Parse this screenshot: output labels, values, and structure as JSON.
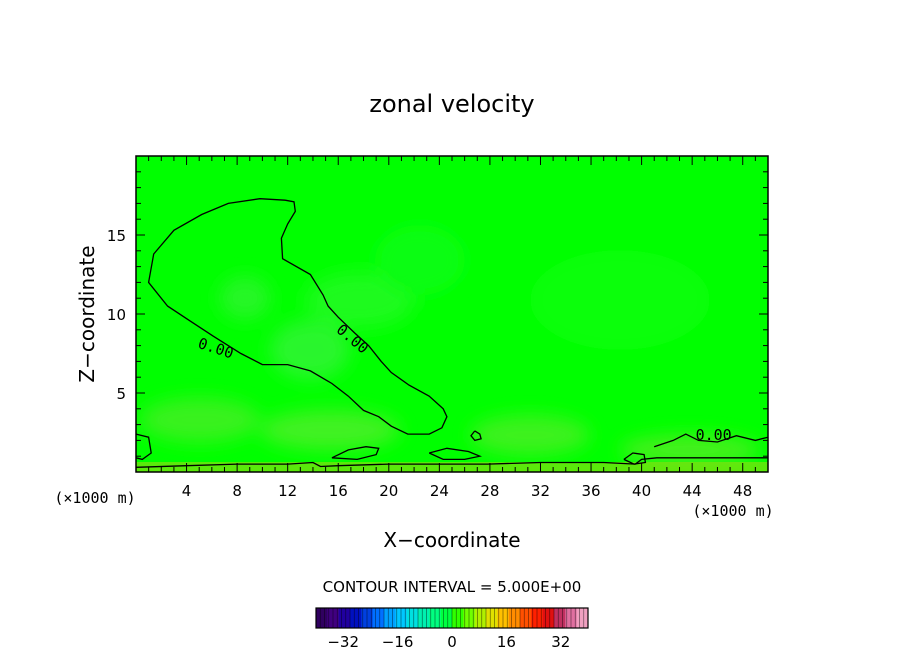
{
  "chart_data": {
    "type": "heatmap",
    "title": "zonal velocity",
    "xlabel": "X−coordinate",
    "ylabel": "Z−coordinate",
    "x_unit_label": "(×1000 m)",
    "z_unit_label": "(×1000 m)",
    "xlim": [
      0,
      50
    ],
    "ylim": [
      0,
      20
    ],
    "x_ticks": [
      4,
      8,
      12,
      16,
      20,
      24,
      28,
      32,
      36,
      40,
      44,
      48
    ],
    "x_tick_labels": [
      "4",
      "8",
      "12",
      "16",
      "20",
      "24",
      "28",
      "32",
      "36",
      "40",
      "44",
      "48"
    ],
    "y_ticks": [
      5,
      10,
      15
    ],
    "y_tick_labels": [
      "5",
      "10",
      "15"
    ],
    "field_color_background": "#00ff00",
    "contour_interval_text": "CONTOUR INTERVAL = 5.000E+00",
    "contour_labels": [
      {
        "text": "0.00",
        "x": 6.3,
        "z": 7.8,
        "angle": 18
      },
      {
        "text": "0.00",
        "x": 17.1,
        "z": 8.4,
        "angle": 40
      },
      {
        "text": "0.00",
        "x": 45.7,
        "z": 2.3,
        "angle": 0
      }
    ],
    "contours": [
      {
        "level": 0,
        "points": [
          [
            11.8,
            17.2
          ],
          [
            12.5,
            17.1
          ],
          [
            12.6,
            16.5
          ],
          [
            12.0,
            15.7
          ],
          [
            11.5,
            14.8
          ],
          [
            11.6,
            13.5
          ],
          [
            13.8,
            12.5
          ],
          [
            14.8,
            11.2
          ],
          [
            15.2,
            10.5
          ],
          [
            16.0,
            9.8
          ],
          [
            17.3,
            8.8
          ],
          [
            18.4,
            8.0
          ],
          [
            19.4,
            7.0
          ],
          [
            20.2,
            6.3
          ],
          [
            21.6,
            5.5
          ],
          [
            23.2,
            4.8
          ],
          [
            24.3,
            4.0
          ],
          [
            24.6,
            3.5
          ],
          [
            24.2,
            2.8
          ],
          [
            23.2,
            2.4
          ],
          [
            21.5,
            2.4
          ],
          [
            20.2,
            2.9
          ],
          [
            19.2,
            3.5
          ],
          [
            18.0,
            3.9
          ],
          [
            16.8,
            4.8
          ],
          [
            15.5,
            5.6
          ],
          [
            13.8,
            6.4
          ],
          [
            12.0,
            6.8
          ],
          [
            10.0,
            6.8
          ],
          [
            8.3,
            7.5
          ],
          [
            6.1,
            8.6
          ],
          [
            4.2,
            9.6
          ],
          [
            2.5,
            10.5
          ],
          [
            1.0,
            12.0
          ],
          [
            1.4,
            13.8
          ],
          [
            3.0,
            15.3
          ],
          [
            5.2,
            16.3
          ],
          [
            7.3,
            17.0
          ],
          [
            9.8,
            17.3
          ],
          [
            11.8,
            17.2
          ]
        ]
      },
      {
        "level": 0,
        "points": [
          [
            0,
            0.3
          ],
          [
            4.0,
            0.4
          ],
          [
            8.0,
            0.5
          ],
          [
            12.0,
            0.5
          ],
          [
            14.0,
            0.6
          ],
          [
            14.6,
            0.35
          ],
          [
            16.0,
            0.4
          ],
          [
            20.0,
            0.5
          ],
          [
            27.8,
            0.5
          ],
          [
            32.0,
            0.6
          ],
          [
            37.0,
            0.6
          ],
          [
            39.5,
            0.5
          ],
          [
            40.0,
            0.8
          ],
          [
            41.2,
            0.9
          ],
          [
            44.5,
            0.9
          ],
          [
            48.0,
            0.9
          ],
          [
            50.0,
            0.9
          ]
        ]
      },
      {
        "level": 0,
        "points": [
          [
            15.5,
            0.9
          ],
          [
            16.8,
            1.4
          ],
          [
            18.2,
            1.6
          ],
          [
            19.2,
            1.5
          ],
          [
            19.0,
            1.1
          ],
          [
            17.5,
            0.8
          ],
          [
            15.5,
            0.9
          ]
        ]
      },
      {
        "level": 0,
        "points": [
          [
            23.2,
            1.2
          ],
          [
            24.6,
            1.5
          ],
          [
            26.3,
            1.3
          ],
          [
            27.2,
            1.0
          ],
          [
            26.0,
            0.8
          ],
          [
            24.3,
            0.8
          ],
          [
            23.2,
            1.2
          ]
        ]
      },
      {
        "level": 0,
        "points": [
          [
            26.8,
            2.6
          ],
          [
            27.2,
            2.4
          ],
          [
            27.3,
            2.1
          ],
          [
            26.8,
            2.0
          ],
          [
            26.5,
            2.3
          ],
          [
            26.8,
            2.6
          ]
        ]
      },
      {
        "level": 0,
        "points": [
          [
            38.6,
            0.8
          ],
          [
            39.3,
            1.2
          ],
          [
            40.2,
            1.1
          ],
          [
            40.3,
            0.6
          ],
          [
            39.4,
            0.5
          ],
          [
            38.6,
            0.8
          ]
        ]
      },
      {
        "level": 0,
        "points": [
          [
            41.0,
            1.6
          ],
          [
            42.5,
            2.0
          ],
          [
            43.5,
            2.4
          ],
          [
            44.5,
            2.0
          ],
          [
            46.0,
            1.9
          ],
          [
            47.5,
            2.3
          ],
          [
            49.0,
            2.0
          ],
          [
            50.0,
            2.2
          ]
        ]
      },
      {
        "level": 0,
        "points": [
          [
            0,
            2.4
          ],
          [
            1.0,
            2.2
          ],
          [
            1.2,
            1.2
          ],
          [
            0.5,
            0.8
          ],
          [
            0,
            0.9
          ]
        ]
      }
    ],
    "colorbar": {
      "ticks": [
        -32,
        -16,
        0,
        16,
        32
      ],
      "tick_labels": [
        "−32",
        "−16",
        "0",
        "16",
        "32"
      ],
      "range": [
        -40,
        40
      ],
      "colors": [
        "#300060",
        "#400080",
        "#2000a0",
        "#0010c0",
        "#0040e0",
        "#0070ff",
        "#00a0ff",
        "#00c8ff",
        "#00e0e0",
        "#00f0b0",
        "#00ff80",
        "#00ff40",
        "#30ff00",
        "#70ff00",
        "#b0f000",
        "#e0e000",
        "#ffc000",
        "#ff8c00",
        "#ff5000",
        "#ff2000",
        "#e01010",
        "#c03060",
        "#e070a0",
        "#f0a0c0"
      ]
    }
  }
}
